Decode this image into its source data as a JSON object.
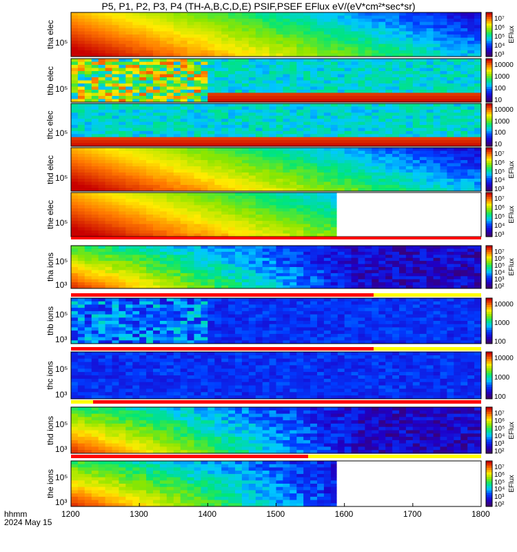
{
  "title": "P5, P1, P2, P3, P4  (TH-A,B,C,D,E) PSIF,PSEF EFlux eV/(eV*cm²*sec*sr)",
  "time_axis": {
    "unit_label": "hhmm",
    "date_label": "2024 May 15",
    "ticks": [
      "1200",
      "1300",
      "1400",
      "1500",
      "1600",
      "1700",
      "1800"
    ],
    "range": [
      1200,
      1800
    ]
  },
  "chart_data": {
    "type": "heatmap",
    "x_range_hhmm": [
      1200,
      1800
    ],
    "colormap": "rainbow (purple-blue-cyan-green-yellow-red)",
    "panels": [
      {
        "probe": "tha",
        "species": "elec",
        "label": "tha elec",
        "y_tick": "10⁵",
        "cbar_ticks": [
          "10³",
          "10⁴",
          "10⁵",
          "10⁶",
          "10⁷"
        ],
        "cbar_label": "EFlux",
        "data_end_hhmm": 1800
      },
      {
        "probe": "thb",
        "species": "elec",
        "label": "thb elec",
        "y_tick": "10⁵",
        "cbar_ticks": [
          "10",
          "100",
          "1000",
          "10000"
        ],
        "cbar_label": "",
        "data_end_hhmm": 1800
      },
      {
        "probe": "thc",
        "species": "elec",
        "label": "thc elec",
        "y_tick": "10⁵",
        "cbar_ticks": [
          "10",
          "100",
          "1000",
          "10000"
        ],
        "cbar_label": "",
        "data_end_hhmm": 1800
      },
      {
        "probe": "thd",
        "species": "elec",
        "label": "thd elec",
        "y_tick": "10⁵",
        "cbar_ticks": [
          "10³",
          "10⁴",
          "10⁵",
          "10⁶",
          "10⁷"
        ],
        "cbar_label": "EFlux",
        "data_end_hhmm": 1800
      },
      {
        "probe": "the",
        "species": "elec",
        "label": "the elec",
        "y_tick": "10⁵",
        "cbar_ticks": [
          "10³",
          "10⁴",
          "10⁵",
          "10⁶",
          "10⁷"
        ],
        "cbar_label": "EFlux",
        "data_end_hhmm": 1553
      },
      {
        "probe": "tha",
        "species": "ions",
        "label": "tha ions",
        "y_ticks": [
          "10⁵",
          "10³"
        ],
        "cbar_ticks": [
          "10²",
          "10³",
          "10⁴",
          "10⁵",
          "10⁶",
          "10⁷"
        ],
        "cbar_label": "EFlux",
        "data_end_hhmm": 1800
      },
      {
        "probe": "thb",
        "species": "ions",
        "label": "thb ions",
        "y_ticks": [
          "10⁵",
          "10³"
        ],
        "cbar_ticks": [
          "100",
          "1000",
          "10000"
        ],
        "cbar_label": "",
        "data_end_hhmm": 1800
      },
      {
        "probe": "thc",
        "species": "ions",
        "label": "thc ions",
        "y_ticks": [
          "10⁵",
          "10³"
        ],
        "cbar_ticks": [
          "100",
          "1000",
          "10000"
        ],
        "cbar_label": "",
        "data_end_hhmm": 1800
      },
      {
        "probe": "thd",
        "species": "ions",
        "label": "thd ions",
        "y_ticks": [
          "10⁵",
          "10³"
        ],
        "cbar_ticks": [
          "10²",
          "10³",
          "10⁴",
          "10⁵",
          "10⁶",
          "10⁷"
        ],
        "cbar_label": "EFlux",
        "data_end_hhmm": 1800
      },
      {
        "probe": "the",
        "species": "ions",
        "label": "the ions",
        "y_ticks": [
          "10⁵",
          "10³"
        ],
        "cbar_ticks": [
          "10²",
          "10³",
          "10⁴",
          "10⁵",
          "10⁶",
          "10⁷"
        ],
        "cbar_label": "EFlux",
        "data_end_hhmm": 1553
      }
    ]
  }
}
